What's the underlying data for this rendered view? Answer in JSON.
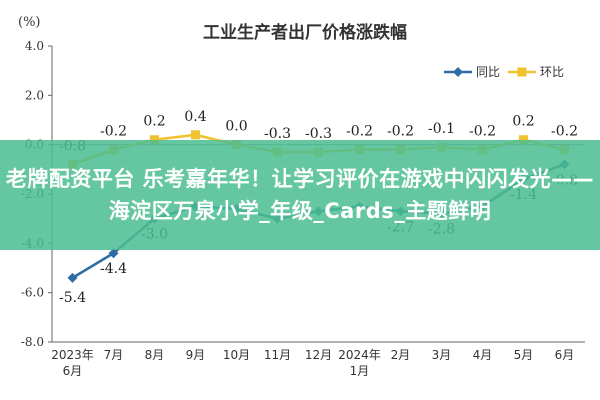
{
  "chart_data": {
    "type": "line",
    "title": "工业生产者出厂价格涨跌幅",
    "ylabel": "(%)",
    "ylim": [
      -8.0,
      4.0
    ],
    "yticks": [
      "4.0",
      "2.0",
      "0.0",
      "-2.0",
      "-4.0",
      "-6.0",
      "-8.0"
    ],
    "categories": [
      "2023年\n6月",
      "7月",
      "8月",
      "9月",
      "10月",
      "11月",
      "12月",
      "2024年\n1月",
      "2月",
      "3月",
      "4月",
      "5月",
      "6月"
    ],
    "series": [
      {
        "name": "同比",
        "color": "#2e6da4",
        "marker": "diamond",
        "values": [
          -5.4,
          -4.4,
          -3.0,
          -2.5,
          -2.6,
          -3.0,
          -2.7,
          -2.5,
          -2.7,
          -2.8,
          -2.5,
          -1.4,
          -0.8
        ],
        "labels": [
          "-5.4",
          "-4.4",
          "-3.0",
          null,
          null,
          null,
          null,
          null,
          "-2.7",
          "-2.8",
          null,
          "-1.4",
          "-0.8"
        ]
      },
      {
        "name": "环比",
        "color": "#f2c12e",
        "marker": "square",
        "values": [
          -0.8,
          -0.2,
          0.2,
          0.4,
          0.0,
          -0.3,
          -0.3,
          -0.2,
          -0.2,
          -0.1,
          -0.2,
          0.2,
          -0.2
        ],
        "labels": [
          "-0.8",
          "-0.2",
          "0.2",
          "0.4",
          "0.0",
          "-0.3",
          "-0.3",
          "-0.2",
          "-0.2",
          "-0.1",
          "-0.2",
          "0.2",
          "-0.2"
        ]
      }
    ],
    "legend": "top-right",
    "grid": false
  },
  "overlay": {
    "text": "老牌配资平台 乐考嘉年华！让学习评价在游戏中闪闪发光——海淀区万泉小学_年级_Cards_主题鲜明"
  }
}
